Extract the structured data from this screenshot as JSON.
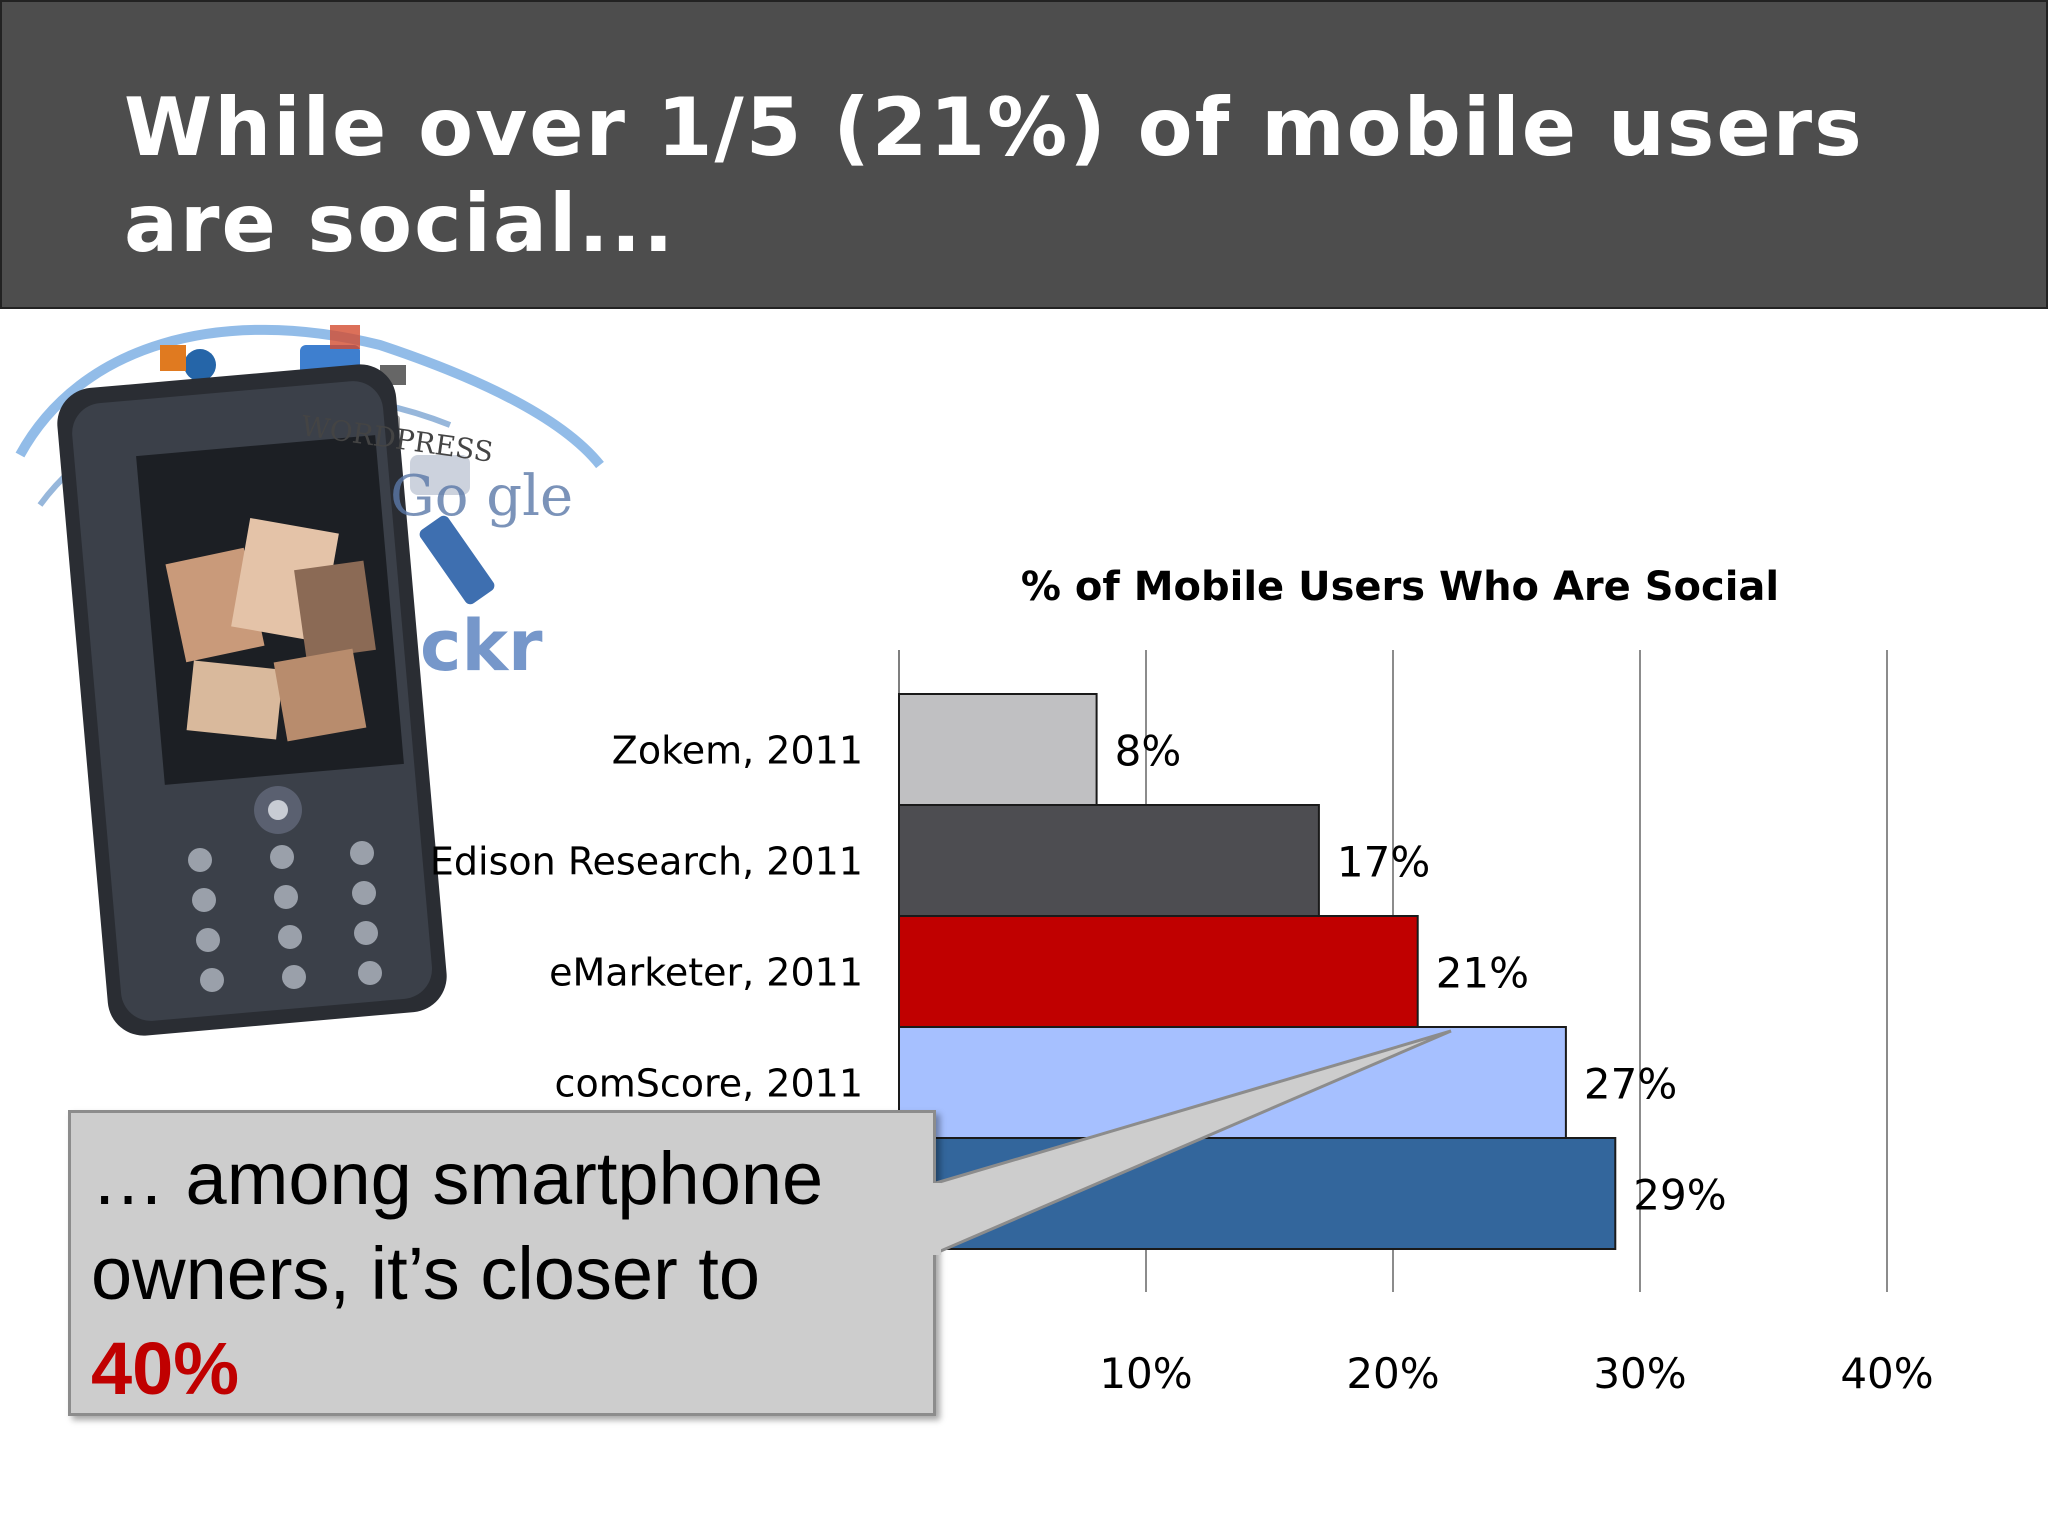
{
  "slide": {
    "title": "While over 1/5 (21%) of mobile users are social...",
    "callout": {
      "text": "… among smartphone owners, it’s closer to",
      "highlight": "40%"
    },
    "phone_icon": "mobile-phone-with-social-logos-icon"
  },
  "chart_data": {
    "type": "bar",
    "orientation": "horizontal",
    "title": "% of Mobile Users Who Are Social",
    "categories": [
      "Zokem, 2011",
      "Edison Research, 2011",
      "eMarketer, 2011",
      "comScore, 2011",
      ""
    ],
    "values": [
      8,
      17,
      21,
      27,
      29
    ],
    "data_labels": [
      "8%",
      "17%",
      "21%",
      "27%",
      "29%"
    ],
    "colors": [
      "#c0c0c2",
      "#4d4d51",
      "#c00000",
      "#a6c0ff",
      "#33669c"
    ],
    "xlim": [
      0,
      40
    ],
    "xticks": [
      10,
      20,
      30,
      40
    ],
    "xtick_labels": [
      "10%",
      "20%",
      "30%",
      "40%"
    ],
    "grid": true,
    "legend": "none"
  }
}
